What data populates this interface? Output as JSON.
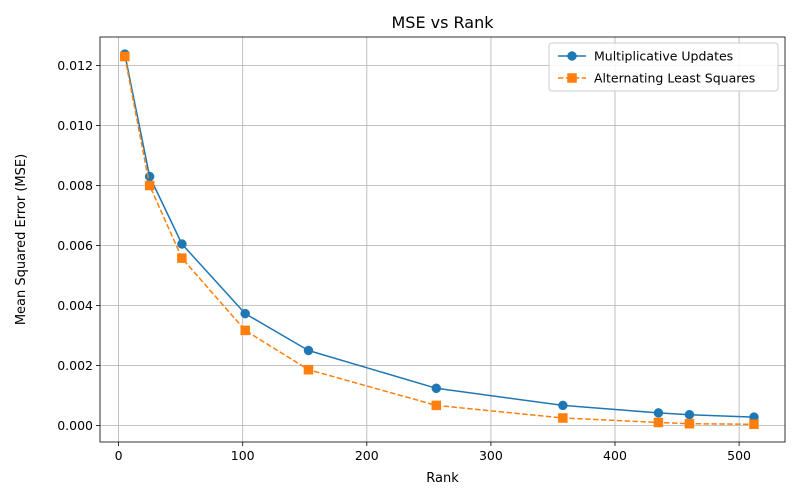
{
  "chart_data": {
    "type": "line",
    "title": "MSE vs Rank",
    "xlabel": "Rank",
    "ylabel": "Mean Squared Error (MSE)",
    "xlim": [
      -15,
      537
    ],
    "ylim": [
      -0.00055,
      0.01295
    ],
    "xticks": [
      0,
      100,
      200,
      300,
      400,
      500
    ],
    "yticks": [
      0.0,
      0.002,
      0.004,
      0.006,
      0.008,
      0.01,
      0.012
    ],
    "ytick_labels": [
      "0.000",
      "0.002",
      "0.004",
      "0.006",
      "0.008",
      "0.010",
      "0.012"
    ],
    "grid": true,
    "legend_position": "top-right",
    "series": [
      {
        "name": "Multiplicative Updates",
        "color": "#1f77b4",
        "marker": "circle",
        "linestyle": "solid",
        "x": [
          5,
          25,
          51,
          102,
          153,
          256,
          358,
          435,
          460,
          512
        ],
        "y": [
          0.01238,
          0.0083,
          0.00605,
          0.00373,
          0.0025,
          0.00124,
          0.00067,
          0.00042,
          0.00036,
          0.00028
        ]
      },
      {
        "name": "Alternating Least Squares",
        "color": "#ff7f0e",
        "marker": "square",
        "linestyle": "dashed",
        "x": [
          5,
          25,
          51,
          102,
          153,
          256,
          358,
          435,
          460,
          512
        ],
        "y": [
          0.0123,
          0.008,
          0.00558,
          0.00317,
          0.00186,
          0.00067,
          0.00025,
          0.0001,
          6e-05,
          4e-05
        ]
      }
    ]
  }
}
